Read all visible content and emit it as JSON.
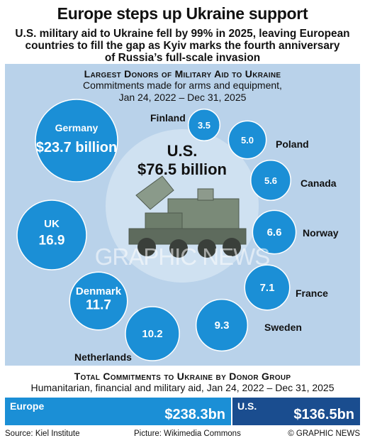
{
  "header": {
    "title": "Europe steps up Ukraine support",
    "subtitle_lines": [
      "U.S. military aid to Ukraine fell by 99% in 2025, leaving European",
      "countries to fill the gap as Kyiv marks the fourth anniversary",
      "of Russia’s full-scale invasion"
    ]
  },
  "watermark": "GRAPHIC NEWS",
  "colors": {
    "bubble": "#1b8fd6",
    "panel": "#b9d2ea",
    "europe_bar": "#1b8fd6",
    "us_bar": "#1a4d8f"
  },
  "chart_data": [
    {
      "type": "bubble",
      "title": "Largest Donors of Military Aid to Ukraine",
      "subtitle_lines": [
        "Commitments made for arms and equipment,",
        "Jan 24, 2022 – Dec 31, 2025"
      ],
      "unit": "$ billion",
      "central": {
        "name": "U.S.",
        "value": 76.5,
        "label": "$76.5 billion"
      },
      "donors": [
        {
          "name": "Germany",
          "value": 23.7,
          "label": "$23.7 billion"
        },
        {
          "name": "UK",
          "value": 16.9,
          "label": "16.9"
        },
        {
          "name": "Denmark",
          "value": 11.7,
          "label": "11.7"
        },
        {
          "name": "Netherlands",
          "value": 10.2,
          "label": "10.2"
        },
        {
          "name": "Sweden",
          "value": 9.3,
          "label": "9.3"
        },
        {
          "name": "France",
          "value": 7.1,
          "label": "7.1"
        },
        {
          "name": "Norway",
          "value": 6.6,
          "label": "6.6"
        },
        {
          "name": "Canada",
          "value": 5.6,
          "label": "5.6"
        },
        {
          "name": "Poland",
          "value": 5.0,
          "label": "5.0"
        },
        {
          "name": "Finland",
          "value": 3.5,
          "label": "3.5"
        }
      ]
    },
    {
      "type": "bar",
      "title": "Total Commitments to Ukraine by Donor Group",
      "subtitle": "Humanitarian, financial and military aid, Jan 24, 2022 – Dec 31, 2025",
      "categories": [
        "Europe",
        "U.S."
      ],
      "values": [
        238.3,
        136.5
      ],
      "value_labels": [
        "$238.3bn",
        "$136.5bn"
      ],
      "unit": "$ billion"
    }
  ],
  "footer": {
    "source": "Source: Kiel Institute",
    "picture": "Picture: Wikimedia Commons",
    "credit": "© GRAPHIC NEWS"
  }
}
